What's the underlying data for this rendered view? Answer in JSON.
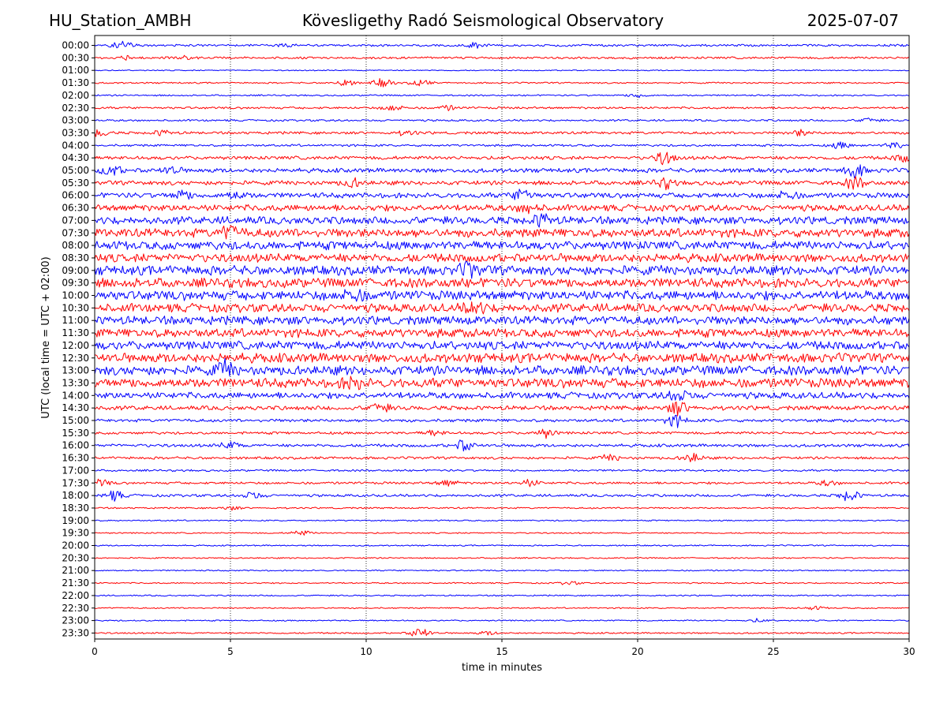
{
  "header": {
    "station": "HU_Station_AMBH",
    "observatory": "Kövesligethy Radó Seismological Observatory",
    "date": "2025-07-07"
  },
  "chart_data": {
    "type": "line",
    "title": "Kövesligethy Radó Seismological Observatory",
    "xlabel": "time in minutes",
    "ylabel": "UTC (local time = UTC + 02:00)",
    "xlim": [
      0,
      30
    ],
    "xticks": [
      "0",
      "5",
      "10",
      "15",
      "20",
      "25",
      "30"
    ],
    "grid": "vertical dotted at x ticks",
    "colors": {
      "even_rows": "#0000ff",
      "odd_rows": "#ff0000"
    },
    "rows": [
      {
        "label": "00:00",
        "amp": 0.5,
        "events": [
          [
            1.0,
            2.0
          ],
          [
            7.0,
            0.8
          ],
          [
            14.0,
            1.2
          ]
        ]
      },
      {
        "label": "00:30",
        "amp": 0.5,
        "events": [
          [
            1.2,
            1.0
          ],
          [
            3.3,
            0.8
          ]
        ]
      },
      {
        "label": "01:00",
        "amp": 0.25,
        "events": []
      },
      {
        "label": "01:30",
        "amp": 0.35,
        "events": [
          [
            9.2,
            1.5
          ],
          [
            10.6,
            2.0
          ],
          [
            12.0,
            1.6
          ]
        ]
      },
      {
        "label": "02:00",
        "amp": 0.35,
        "events": [
          [
            20.0,
            1.0
          ]
        ]
      },
      {
        "label": "02:30",
        "amp": 0.5,
        "events": [
          [
            11.0,
            1.4
          ],
          [
            13.0,
            1.0
          ]
        ]
      },
      {
        "label": "03:00",
        "amp": 0.45,
        "events": [
          [
            28.5,
            1.0
          ]
        ]
      },
      {
        "label": "03:30",
        "amp": 0.6,
        "events": [
          [
            0.1,
            2.0
          ],
          [
            2.5,
            1.2
          ],
          [
            11.5,
            1.0
          ],
          [
            26.0,
            1.3
          ]
        ]
      },
      {
        "label": "04:00",
        "amp": 0.5,
        "events": [
          [
            27.5,
            1.5
          ],
          [
            29.5,
            1.5
          ]
        ]
      },
      {
        "label": "04:30",
        "amp": 0.8,
        "events": [
          [
            21.0,
            3.0
          ],
          [
            29.8,
            1.6
          ]
        ]
      },
      {
        "label": "05:00",
        "amp": 1.0,
        "events": [
          [
            0.6,
            2.5
          ],
          [
            2.8,
            1.6
          ],
          [
            28.0,
            3.0
          ]
        ]
      },
      {
        "label": "05:30",
        "amp": 1.0,
        "events": [
          [
            9.5,
            1.8
          ],
          [
            21.0,
            2.2
          ],
          [
            28.0,
            2.5
          ]
        ]
      },
      {
        "label": "06:00",
        "amp": 1.2,
        "events": [
          [
            3.2,
            2.0
          ],
          [
            5.2,
            1.5
          ],
          [
            15.8,
            3.0
          ],
          [
            25.5,
            2.0
          ]
        ]
      },
      {
        "label": "06:30",
        "amp": 1.5,
        "events": [
          [
            16.0,
            2.0
          ]
        ]
      },
      {
        "label": "07:00",
        "amp": 1.8,
        "events": [
          [
            16.5,
            2.5
          ]
        ]
      },
      {
        "label": "07:30",
        "amp": 2.0,
        "events": [
          [
            5.0,
            2.5
          ]
        ]
      },
      {
        "label": "08:00",
        "amp": 2.0,
        "events": []
      },
      {
        "label": "08:30",
        "amp": 2.0,
        "events": []
      },
      {
        "label": "09:00",
        "amp": 2.2,
        "events": [
          [
            13.8,
            2.5
          ]
        ]
      },
      {
        "label": "09:30",
        "amp": 2.2,
        "events": []
      },
      {
        "label": "10:00",
        "amp": 2.2,
        "events": [
          [
            9.5,
            2.5
          ]
        ]
      },
      {
        "label": "10:30",
        "amp": 2.0,
        "events": [
          [
            14.0,
            2.5
          ]
        ]
      },
      {
        "label": "11:00",
        "amp": 2.0,
        "events": []
      },
      {
        "label": "11:30",
        "amp": 2.0,
        "events": []
      },
      {
        "label": "12:00",
        "amp": 2.0,
        "events": []
      },
      {
        "label": "12:30",
        "amp": 2.2,
        "events": []
      },
      {
        "label": "13:00",
        "amp": 2.2,
        "events": [
          [
            4.8,
            3.0
          ]
        ]
      },
      {
        "label": "13:30",
        "amp": 2.2,
        "events": [
          [
            9.5,
            2.0
          ]
        ]
      },
      {
        "label": "14:00",
        "amp": 1.5,
        "events": [
          [
            21.5,
            2.5
          ]
        ]
      },
      {
        "label": "14:30",
        "amp": 1.0,
        "events": [
          [
            10.5,
            2.0
          ],
          [
            21.5,
            3.0
          ]
        ]
      },
      {
        "label": "15:00",
        "amp": 0.7,
        "events": [
          [
            21.4,
            2.5
          ]
        ]
      },
      {
        "label": "15:30",
        "amp": 0.6,
        "events": [
          [
            16.6,
            2.0
          ],
          [
            12.5,
            1.2
          ]
        ]
      },
      {
        "label": "16:00",
        "amp": 0.7,
        "events": [
          [
            13.6,
            2.5
          ],
          [
            5.0,
            1.5
          ]
        ]
      },
      {
        "label": "16:30",
        "amp": 0.6,
        "events": [
          [
            22.0,
            2.2
          ],
          [
            19.0,
            1.4
          ]
        ]
      },
      {
        "label": "17:00",
        "amp": 0.45,
        "events": []
      },
      {
        "label": "17:30",
        "amp": 0.55,
        "events": [
          [
            0.2,
            1.6
          ],
          [
            13.0,
            1.5
          ],
          [
            16.0,
            1.5
          ],
          [
            27.0,
            1.2
          ]
        ]
      },
      {
        "label": "18:00",
        "amp": 0.6,
        "events": [
          [
            0.7,
            2.2
          ],
          [
            5.8,
            1.6
          ],
          [
            27.8,
            2.6
          ]
        ]
      },
      {
        "label": "18:30",
        "amp": 0.35,
        "events": [
          [
            5.0,
            0.8
          ]
        ]
      },
      {
        "label": "19:00",
        "amp": 0.3,
        "events": []
      },
      {
        "label": "19:30",
        "amp": 0.3,
        "events": [
          [
            7.6,
            1.2
          ]
        ]
      },
      {
        "label": "20:00",
        "amp": 0.3,
        "events": []
      },
      {
        "label": "20:30",
        "amp": 0.3,
        "events": []
      },
      {
        "label": "21:00",
        "amp": 0.3,
        "events": []
      },
      {
        "label": "21:30",
        "amp": 0.3,
        "events": [
          [
            17.5,
            0.8
          ]
        ]
      },
      {
        "label": "22:00",
        "amp": 0.3,
        "events": []
      },
      {
        "label": "22:30",
        "amp": 0.3,
        "events": [
          [
            26.5,
            0.8
          ]
        ]
      },
      {
        "label": "23:00",
        "amp": 0.3,
        "events": [
          [
            24.5,
            0.8
          ]
        ]
      },
      {
        "label": "23:30",
        "amp": 0.35,
        "events": [
          [
            12.0,
            2.6
          ],
          [
            14.5,
            0.8
          ]
        ]
      }
    ]
  }
}
